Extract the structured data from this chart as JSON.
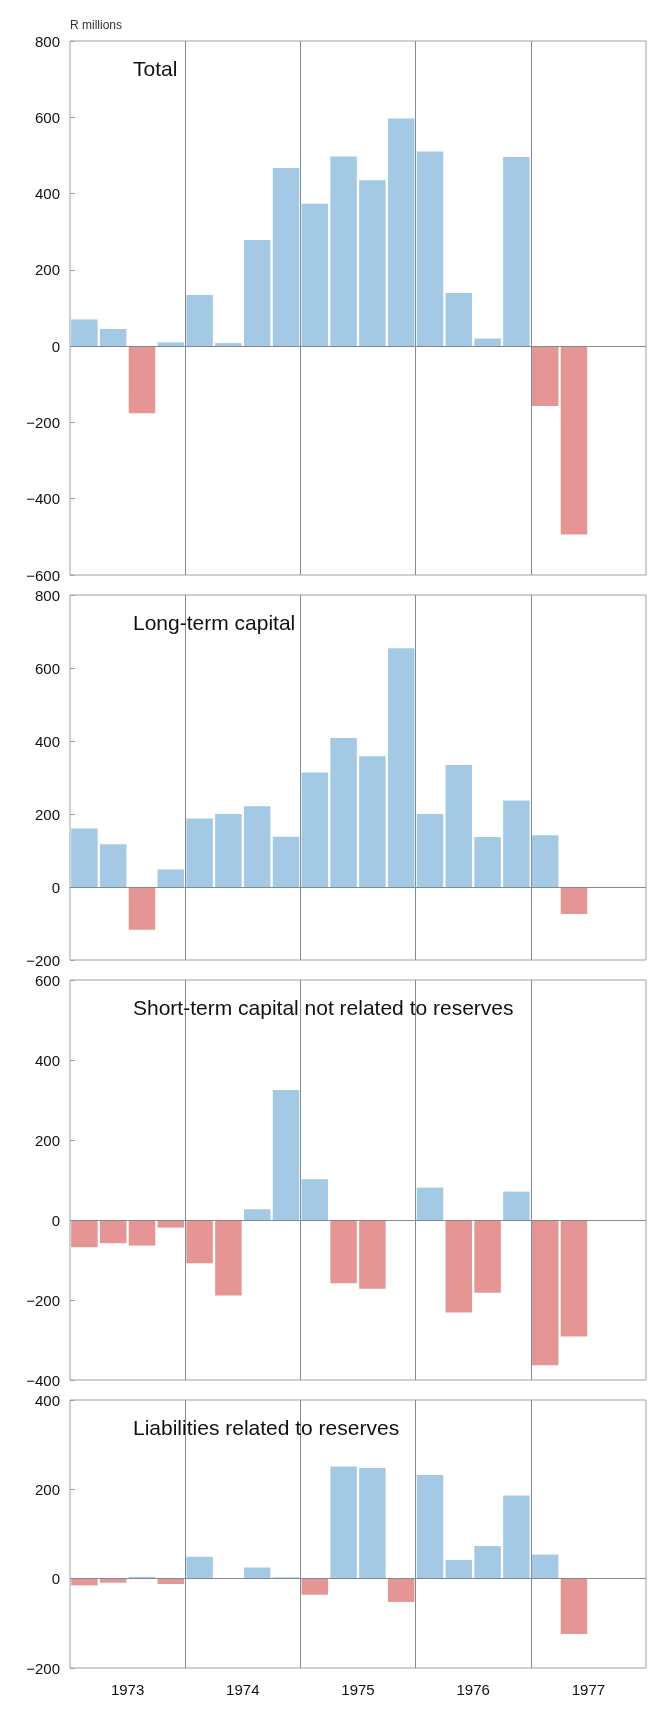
{
  "chart_data": [
    {
      "type": "bar",
      "title": "Total",
      "ylabel": "R millions",
      "x": [
        1973.125,
        1973.375,
        1973.625,
        1973.875,
        1974.125,
        1974.375,
        1974.625,
        1974.875,
        1975.125,
        1975.375,
        1975.625,
        1975.875,
        1976.125,
        1976.375,
        1976.625,
        1976.875,
        1977.125,
        1977.375
      ],
      "values": [
        70,
        45,
        -176,
        10,
        134,
        8,
        278,
        467,
        373,
        497,
        435,
        597,
        510,
        139,
        20,
        496,
        -157,
        -494
      ],
      "colors": [
        "#a3c9e4",
        "#a3c9e4",
        "#e59594",
        "#a3c9e4",
        "#a3c9e4",
        "#a3c9e4",
        "#a3c9e4",
        "#a3c9e4",
        "#a3c9e4",
        "#a3c9e4",
        "#a3c9e4",
        "#a3c9e4",
        "#a3c9e4",
        "#a3c9e4",
        "#a3c9e4",
        "#a3c9e4",
        "#e59594",
        "#e59594"
      ],
      "xlim": [
        1973,
        1978
      ],
      "ylim": [
        -600,
        800
      ],
      "yticks": [
        -600,
        -400,
        -200,
        0,
        200,
        400,
        600,
        800
      ],
      "tick_labels": "y",
      "grid": false,
      "ref_lines": [
        {
          "axis": "y",
          "value": 0
        },
        {
          "axis": "x",
          "value": 1974
        },
        {
          "axis": "x",
          "value": 1975
        },
        {
          "axis": "x",
          "value": 1976
        },
        {
          "axis": "x",
          "value": 1977
        }
      ]
    },
    {
      "type": "bar",
      "title": "Long-term capital",
      "x": [
        1973.125,
        1973.375,
        1973.625,
        1973.875,
        1974.125,
        1974.375,
        1974.625,
        1974.875,
        1975.125,
        1975.375,
        1975.625,
        1975.875,
        1976.125,
        1976.375,
        1976.625,
        1976.875,
        1977.125,
        1977.375
      ],
      "values": [
        160,
        117,
        -117,
        48,
        188,
        200,
        221,
        138,
        314,
        408,
        358,
        654,
        200,
        334,
        137,
        237,
        142,
        -74
      ],
      "colors": [
        "#a3c9e4",
        "#a3c9e4",
        "#e59594",
        "#a3c9e4",
        "#a3c9e4",
        "#a3c9e4",
        "#a3c9e4",
        "#a3c9e4",
        "#a3c9e4",
        "#a3c9e4",
        "#a3c9e4",
        "#a3c9e4",
        "#a3c9e4",
        "#a3c9e4",
        "#a3c9e4",
        "#a3c9e4",
        "#a3c9e4",
        "#e59594"
      ],
      "xlim": [
        1973,
        1978
      ],
      "ylim": [
        -200,
        800
      ],
      "yticks": [
        -200,
        0,
        200,
        400,
        600,
        800
      ],
      "tick_labels": "y",
      "grid": false,
      "ref_lines": [
        {
          "axis": "y",
          "value": 0
        },
        {
          "axis": "x",
          "value": 1974
        },
        {
          "axis": "x",
          "value": 1975
        },
        {
          "axis": "x",
          "value": 1976
        },
        {
          "axis": "x",
          "value": 1977
        }
      ]
    },
    {
      "type": "bar",
      "title": "Short-term capital not related to reserves",
      "x": [
        1973.125,
        1973.375,
        1973.625,
        1973.875,
        1974.125,
        1974.375,
        1974.625,
        1974.875,
        1975.125,
        1975.375,
        1975.625,
        1975.875,
        1976.125,
        1976.375,
        1976.625,
        1976.875,
        1977.125,
        1977.375
      ],
      "values": [
        -68,
        -58,
        -64,
        -19,
        -108,
        -189,
        27,
        325,
        102,
        -158,
        -172,
        0,
        81,
        -231,
        -182,
        71,
        -363,
        -291
      ],
      "colors": [
        "#e59594",
        "#e59594",
        "#e59594",
        "#e59594",
        "#e59594",
        "#e59594",
        "#a3c9e4",
        "#a3c9e4",
        "#a3c9e4",
        "#e59594",
        "#e59594",
        "#a3c9e4",
        "#a3c9e4",
        "#e59594",
        "#e59594",
        "#a3c9e4",
        "#e59594",
        "#e59594"
      ],
      "xlim": [
        1973,
        1978
      ],
      "ylim": [
        -400,
        600
      ],
      "yticks": [
        -400,
        -200,
        0,
        200,
        400,
        600
      ],
      "tick_labels": "y",
      "grid": false,
      "ref_lines": [
        {
          "axis": "y",
          "value": 0
        },
        {
          "axis": "x",
          "value": 1974
        },
        {
          "axis": "x",
          "value": 1975
        },
        {
          "axis": "x",
          "value": 1976
        },
        {
          "axis": "x",
          "value": 1977
        }
      ]
    },
    {
      "type": "bar",
      "title": "Liabilities related to reserves",
      "x": [
        1973.125,
        1973.375,
        1973.625,
        1973.875,
        1974.125,
        1974.375,
        1974.625,
        1974.875,
        1975.125,
        1975.375,
        1975.625,
        1975.875,
        1976.125,
        1976.375,
        1976.625,
        1976.875,
        1977.125,
        1977.375
      ],
      "values": [
        -15,
        -9,
        4,
        -12,
        49,
        0,
        25,
        3,
        -36,
        251,
        248,
        -52,
        232,
        42,
        73,
        186,
        54,
        -124
      ],
      "colors": [
        "#e59594",
        "#e59594",
        "#a3c9e4",
        "#e59594",
        "#a3c9e4",
        "#a3c9e4",
        "#a3c9e4",
        "#a3c9e4",
        "#e59594",
        "#a3c9e4",
        "#a3c9e4",
        "#e59594",
        "#a3c9e4",
        "#a3c9e4",
        "#a3c9e4",
        "#a3c9e4",
        "#a3c9e4",
        "#e59594"
      ],
      "xlim": [
        1973,
        1978
      ],
      "xticks": [
        {
          "value": 1973.5,
          "label": "1973"
        },
        {
          "value": 1974.5,
          "label": "1974"
        },
        {
          "value": 1975.5,
          "label": "1975"
        },
        {
          "value": 1976.5,
          "label": "1976"
        },
        {
          "value": 1977.5,
          "label": "1977"
        }
      ],
      "ylim": [
        -200,
        400
      ],
      "yticks": [
        -200,
        0,
        200,
        400
      ],
      "grid": false,
      "ref_lines": [
        {
          "axis": "y",
          "value": 0
        },
        {
          "axis": "x",
          "value": 1974
        },
        {
          "axis": "x",
          "value": 1975
        },
        {
          "axis": "x",
          "value": 1976
        },
        {
          "axis": "x",
          "value": 1977
        }
      ]
    }
  ]
}
